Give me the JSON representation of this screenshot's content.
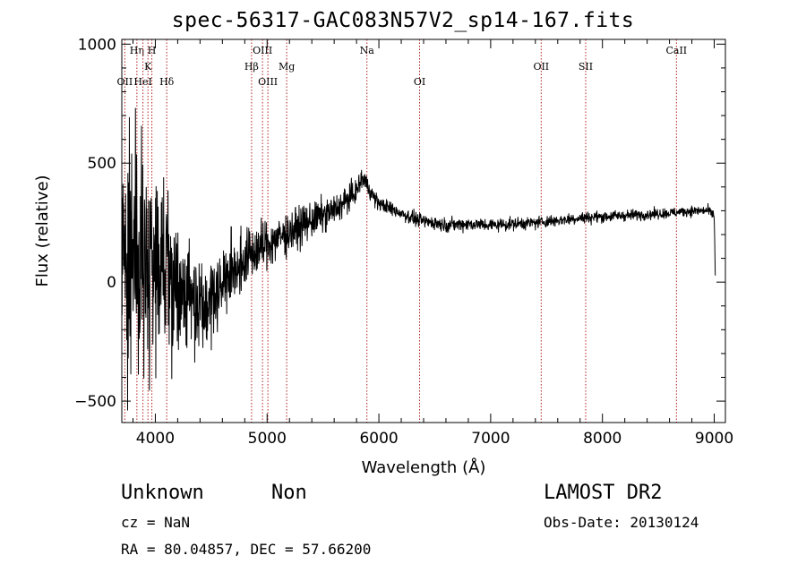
{
  "chart_data": {
    "type": "line",
    "title": "spec-56317-GAC083N57V2_sp14-167.fits",
    "xlabel": "Wavelength (Å)",
    "ylabel": "Flux (relative)",
    "xlim": [
      3700,
      9100
    ],
    "ylim": [
      -590,
      1020
    ],
    "x_ticks": [
      4000,
      5000,
      6000,
      7000,
      8000,
      9000
    ],
    "y_ticks": [
      -500,
      0,
      500,
      1000
    ],
    "grid": false,
    "lines": [
      {
        "label": "OII",
        "x": 3727,
        "row": 3
      },
      {
        "label": "Hη",
        "x": 3835,
        "row": 1
      },
      {
        "label": "HeI",
        "x": 3889,
        "row": 3
      },
      {
        "label": "K",
        "x": 3934,
        "row": 2
      },
      {
        "label": "H",
        "x": 3969,
        "row": 1
      },
      {
        "label": "Hδ",
        "x": 4102,
        "row": 3
      },
      {
        "label": "Hβ",
        "x": 4861,
        "row": 2
      },
      {
        "label": "OIII",
        "x": 4959,
        "row": 1
      },
      {
        "label": "OIII",
        "x": 5007,
        "row": 3
      },
      {
        "label": "Mg",
        "x": 5175,
        "row": 2
      },
      {
        "label": "Na",
        "x": 5893,
        "row": 1
      },
      {
        "label": "OI",
        "x": 6364,
        "row": 3
      },
      {
        "label": "OII",
        "x": 7452,
        "row": 2
      },
      {
        "label": "SII",
        "x": 7850,
        "row": 2
      },
      {
        "label": "CaII",
        "x": 8662,
        "row": 1
      }
    ],
    "spectrum_envelope": {
      "x": [
        3700,
        3750,
        3800,
        3850,
        3900,
        3950,
        4000,
        4100,
        4200,
        4300,
        4400,
        4500,
        4600,
        4800,
        5000,
        5200,
        5400,
        5600,
        5800,
        5850,
        5880,
        5950,
        6000,
        6100,
        6200,
        6300,
        6400,
        6500,
        6600,
        6800,
        7000,
        7200,
        7400,
        7600,
        7800,
        8000,
        8200,
        8400,
        8600,
        8800,
        8950,
        9000,
        9010
      ],
      "y": [
        150,
        120,
        200,
        100,
        150,
        30,
        60,
        50,
        0,
        -60,
        -80,
        -70,
        0,
        100,
        160,
        210,
        260,
        300,
        380,
        440,
        420,
        360,
        330,
        310,
        290,
        270,
        255,
        250,
        240,
        245,
        240,
        245,
        250,
        260,
        270,
        275,
        280,
        285,
        290,
        300,
        300,
        280,
        20
      ]
    },
    "noise_amplitude": {
      "x": [
        3700,
        3900,
        4100,
        4300,
        4500,
        4700,
        5000,
        5500,
        5800,
        6000,
        9000
      ],
      "y": [
        280,
        260,
        200,
        120,
        90,
        70,
        50,
        35,
        25,
        15,
        10
      ]
    }
  },
  "footer": {
    "object_class": "Unknown",
    "subclass": "Non",
    "redshift": "cz = NaN",
    "coords": "RA =  80.04857, DEC =  57.66200",
    "survey": "LAMOST DR2",
    "obs_date": "Obs-Date: 20130124"
  }
}
